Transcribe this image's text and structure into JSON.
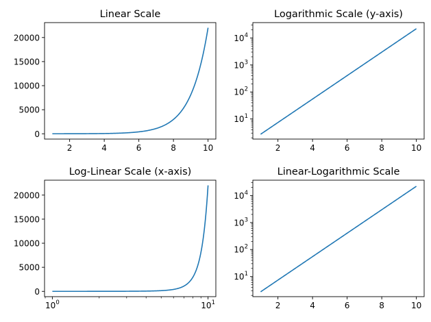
{
  "chart_data": [
    {
      "type": "line",
      "title": "Linear Scale",
      "xscale": "linear",
      "yscale": "linear",
      "xlim": [
        0.55,
        10.45
      ],
      "ylim": [
        -1100,
        23100
      ],
      "xticks": [
        2,
        4,
        6,
        8,
        10
      ],
      "xtick_labels": [
        "2",
        "4",
        "6",
        "8",
        "10"
      ],
      "yticks": [
        0,
        5000,
        10000,
        15000,
        20000
      ],
      "ytick_labels": [
        "0",
        "5000",
        "10000",
        "15000",
        "20000"
      ],
      "grid": false,
      "series": [
        {
          "function": "exp(x)",
          "x_range": [
            1,
            10
          ],
          "color": "#1f77b4"
        }
      ]
    },
    {
      "type": "line",
      "title": "Logarithmic Scale (y-axis)",
      "xscale": "linear",
      "yscale": "log",
      "xlim": [
        0.55,
        10.45
      ],
      "ylim": [
        1.8,
        37000
      ],
      "xticks": [
        2,
        4,
        6,
        8,
        10
      ],
      "xtick_labels": [
        "2",
        "4",
        "6",
        "8",
        "10"
      ],
      "yticks": [
        10,
        100,
        1000,
        10000
      ],
      "ytick_labels": [
        {
          "base": "10",
          "exp": "1"
        },
        {
          "base": "10",
          "exp": "2"
        },
        {
          "base": "10",
          "exp": "3"
        },
        {
          "base": "10",
          "exp": "4"
        }
      ],
      "grid": false,
      "series": [
        {
          "function": "exp(x)",
          "x_range": [
            1,
            10
          ],
          "color": "#1f77b4"
        }
      ]
    },
    {
      "type": "line",
      "title": "Log-Linear Scale (x-axis)",
      "xscale": "log",
      "yscale": "linear",
      "xlim": [
        0.891,
        11.22
      ],
      "ylim": [
        -1100,
        23100
      ],
      "xticks": [
        1,
        10
      ],
      "xtick_labels": [
        {
          "base": "10",
          "exp": "0"
        },
        {
          "base": "10",
          "exp": "1"
        }
      ],
      "yticks": [
        0,
        5000,
        10000,
        15000,
        20000
      ],
      "ytick_labels": [
        "0",
        "5000",
        "10000",
        "15000",
        "20000"
      ],
      "grid": false,
      "series": [
        {
          "function": "exp(x)",
          "x_range": [
            1,
            10
          ],
          "color": "#1f77b4"
        }
      ]
    },
    {
      "type": "line",
      "title": "Linear-Logarithmic Scale",
      "xscale": "linear",
      "yscale": "log",
      "xlim": [
        0.55,
        10.45
      ],
      "ylim": [
        1.8,
        37000
      ],
      "xticks": [
        2,
        4,
        6,
        8,
        10
      ],
      "xtick_labels": [
        "2",
        "4",
        "6",
        "8",
        "10"
      ],
      "yticks": [
        10,
        100,
        1000,
        10000
      ],
      "ytick_labels": [
        {
          "base": "10",
          "exp": "1"
        },
        {
          "base": "10",
          "exp": "2"
        },
        {
          "base": "10",
          "exp": "3"
        },
        {
          "base": "10",
          "exp": "4"
        }
      ],
      "grid": false,
      "series": [
        {
          "function": "exp(x)",
          "x_range": [
            1,
            10
          ],
          "color": "#1f77b4"
        }
      ]
    }
  ]
}
